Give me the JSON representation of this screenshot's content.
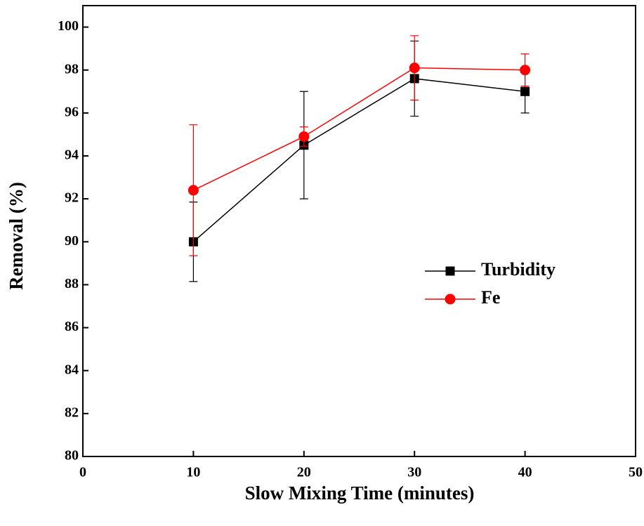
{
  "chart_data": {
    "type": "line",
    "x_label": "Slow Mixing Time (minutes)",
    "y_label": "Removal (%)",
    "x": [
      10,
      20,
      30,
      40
    ],
    "series": [
      {
        "name": "Turbidity",
        "color": "#000000",
        "marker": "square",
        "values": [
          90.0,
          94.5,
          97.6,
          97.0
        ],
        "errors": [
          1.85,
          2.5,
          1.75,
          1.0
        ]
      },
      {
        "name": "Fe",
        "color": "#ff0000",
        "marker": "circle",
        "values": [
          92.4,
          94.9,
          98.1,
          98.0
        ],
        "errors": [
          3.05,
          0.45,
          1.5,
          0.75
        ]
      }
    ],
    "xlim": [
      0,
      50
    ],
    "xticks": [
      0,
      10,
      20,
      30,
      40,
      50
    ],
    "ylim": [
      80,
      101
    ],
    "yticks": [
      80,
      82,
      84,
      86,
      88,
      90,
      92,
      94,
      96,
      98,
      100
    ],
    "legend": "center right",
    "grid": false
  }
}
